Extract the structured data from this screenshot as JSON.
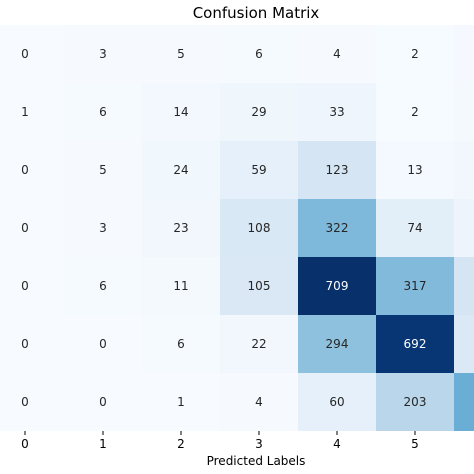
{
  "chart_data": {
    "type": "heatmap",
    "title": "Confusion Matrix",
    "xlabel": "Predicted Labels",
    "ylabel": "",
    "x_ticks": [
      "0",
      "1",
      "2",
      "3",
      "4",
      "5"
    ],
    "colormap": "Blues",
    "color_low": "#f7fbff",
    "color_high": "#08306b",
    "color_range": [
      0,
      709
    ],
    "values": [
      [
        0,
        3,
        5,
        6,
        4,
        2
      ],
      [
        1,
        6,
        14,
        29,
        33,
        2
      ],
      [
        0,
        5,
        24,
        59,
        123,
        13
      ],
      [
        0,
        3,
        23,
        108,
        322,
        74
      ],
      [
        0,
        6,
        11,
        105,
        709,
        317
      ],
      [
        0,
        0,
        6,
        22,
        294,
        692
      ],
      [
        0,
        0,
        1,
        4,
        60,
        203
      ]
    ],
    "cut_off_column_colors": [
      "#f5f9ff",
      "#f4f9fe",
      "#f2f7fd",
      "#edf4fc",
      "#d5e5f4",
      "#dbe9f6",
      "#6aaed6"
    ]
  }
}
